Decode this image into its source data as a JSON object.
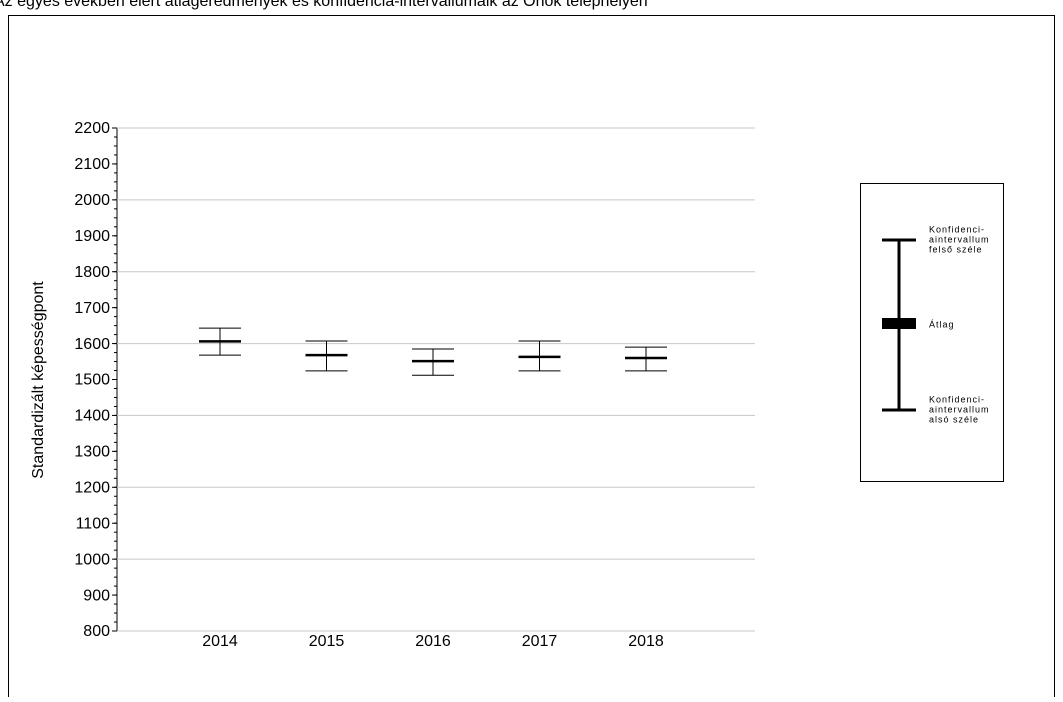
{
  "chart_data": {
    "type": "errorbar",
    "title": "Az egyes években elért átlageredmények és konfidencia-intervallumaik az Önök telephelyén",
    "y_label": "Standardizált képességpont",
    "categories": [
      "2014",
      "2015",
      "2016",
      "2017",
      "2018"
    ],
    "values": [
      1606,
      1568,
      1551,
      1563,
      1560
    ],
    "upper": [
      1643,
      1607,
      1585,
      1607,
      1590
    ],
    "lower": [
      1568,
      1524,
      1512,
      1524,
      1524
    ],
    "color": "#000000",
    "ylim": [
      800,
      2200
    ],
    "yticks": [
      800,
      900,
      1000,
      1100,
      1200,
      1300,
      1400,
      1500,
      1600,
      1700,
      1800,
      1900,
      2000,
      2100,
      2200
    ],
    "grid": true,
    "legend": {
      "upper": [
        "Konfidenci-",
        "aintervallum",
        "felső széle"
      ],
      "mean": [
        "Átlag"
      ],
      "lower": [
        "Konfidenci-",
        "aintervallum",
        "alsó széle"
      ]
    }
  }
}
